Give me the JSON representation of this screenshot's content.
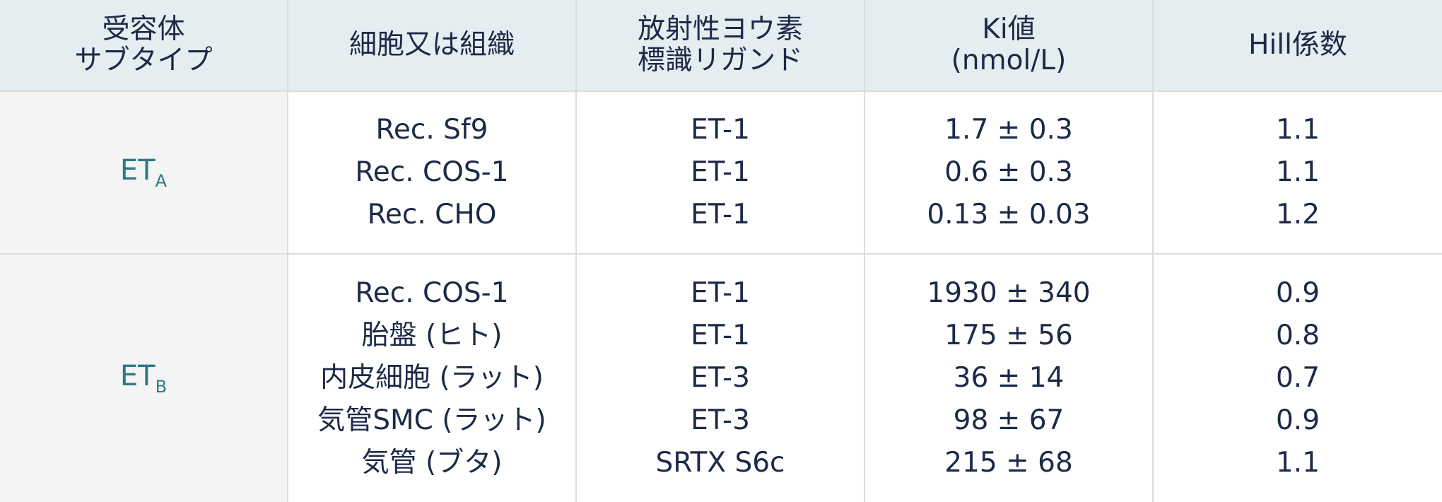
{
  "table": {
    "header": [
      [
        "受容体",
        "サブタイプ"
      ],
      [
        "細胞又は組織"
      ],
      [
        "放射性ヨウ素",
        "標識リガンド"
      ],
      [
        "Ki値",
        "(nmol/L)"
      ],
      [
        "Hill係数"
      ]
    ],
    "rows": [
      {
        "subtype": {
          "base": "ET",
          "sub": "A"
        },
        "entries": [
          [
            "Rec. Sf9",
            "ET-1",
            "1.7 ± 0.3",
            "1.1"
          ],
          [
            "Rec. COS-1",
            "ET-1",
            "0.6 ± 0.3",
            "1.1"
          ],
          [
            "Rec. CHO",
            "ET-1",
            "0.13 ± 0.03",
            "1.2"
          ]
        ]
      },
      {
        "subtype": {
          "base": "ET",
          "sub": "B"
        },
        "entries": [
          [
            "Rec. COS-1",
            "ET-1",
            "1930 ± 340",
            "0.9"
          ],
          [
            "胎盤 (ヒト)",
            "ET-1",
            "175 ± 56",
            "0.8"
          ],
          [
            "内皮細胞 (ラット)",
            "ET-3",
            "36 ± 14",
            "0.7"
          ],
          [
            "気管SMC (ラット)",
            "ET-3",
            "98 ± 67",
            "0.9"
          ],
          [
            "気管 (ブタ)",
            "SRTX S6c",
            "215 ± 68",
            "1.1"
          ]
        ]
      }
    ]
  }
}
